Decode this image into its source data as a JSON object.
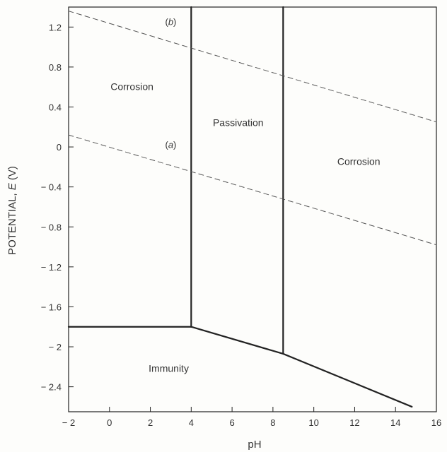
{
  "chart_data": {
    "type": "line",
    "xlabel": "pH",
    "ylabel_prefix": "POTENTIAL, ",
    "ylabel_var": "E",
    "ylabel_suffix": " (V)",
    "xlim": [
      -2,
      16
    ],
    "ylim": [
      -2.65,
      1.4
    ],
    "x_ticks": [
      -2,
      0,
      2,
      4,
      6,
      8,
      10,
      12,
      14,
      16
    ],
    "x_tick_labels": [
      "− 2",
      "0",
      "2",
      "4",
      "6",
      "8",
      "10",
      "12",
      "14",
      "16"
    ],
    "y_ticks": [
      1.2,
      0.8,
      0.4,
      0,
      -0.4,
      -0.8,
      -1.2,
      -1.6,
      -2,
      -2.4
    ],
    "y_tick_labels": [
      "1.2",
      "0.8",
      "0.4",
      "0",
      "− 0.4",
      "− 0.8",
      "− 1.2",
      "− 1.6",
      "− 2",
      "− 2.4"
    ],
    "grid": false,
    "boundaries": [
      {
        "id": "immunity-corrosion-boundary",
        "style": "solid",
        "x": [
          -2,
          4
        ],
        "y": [
          -1.8,
          -1.8
        ]
      },
      {
        "id": "immunity-passivation-boundary",
        "style": "solid",
        "x": [
          4,
          8.5
        ],
        "y": [
          -1.8,
          -2.07
        ]
      },
      {
        "id": "immunity-corrosion-right-boundary",
        "style": "solid",
        "x": [
          8.5,
          14.8
        ],
        "y": [
          -2.07,
          -2.6
        ]
      },
      {
        "id": "corrosion-passivation-vertical-boundary",
        "style": "solid",
        "x": [
          4,
          4
        ],
        "y": [
          -1.8,
          1.4
        ]
      },
      {
        "id": "passivation-corrosion-vertical-boundary",
        "style": "solid",
        "x": [
          8.5,
          8.5
        ],
        "y": [
          -2.07,
          1.4
        ]
      },
      {
        "id": "water-line-a",
        "style": "dashed",
        "label": "a",
        "x": [
          -2,
          16
        ],
        "y": [
          0.12,
          -0.98
        ]
      },
      {
        "id": "water-line-b",
        "style": "dashed",
        "label": "b",
        "x": [
          -2,
          16
        ],
        "y": [
          1.36,
          0.25
        ]
      }
    ],
    "region_labels": [
      {
        "text": "Corrosion",
        "x": 1.1,
        "y": 0.57
      },
      {
        "text": "Passivation",
        "x": 6.3,
        "y": 0.21
      },
      {
        "text": "Corrosion",
        "x": 12.2,
        "y": -0.18
      },
      {
        "text": "Immunity",
        "x": 2.9,
        "y": -2.25
      }
    ],
    "line_labels": [
      {
        "open": "(",
        "var": "b",
        "close": ")",
        "x": 3.0,
        "y": 1.22
      },
      {
        "open": "(",
        "var": "a",
        "close": ")",
        "x": 3.0,
        "y": -0.01
      }
    ]
  }
}
